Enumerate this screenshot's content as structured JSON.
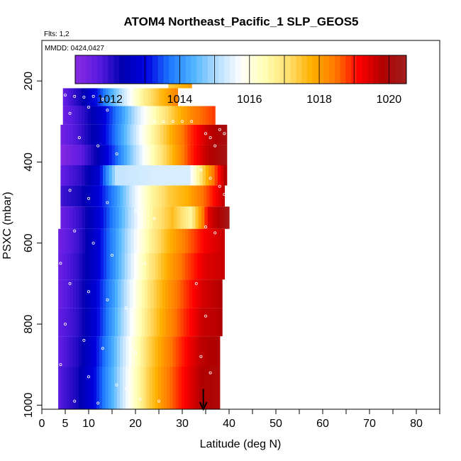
{
  "chart_data": {
    "type": "heatmap",
    "title": "ATOM4 Northeast_Pacific_1 SLP_GEOS5",
    "flights_label": "Flts: 1,2",
    "dates_label": "MMDD: 0424,0427",
    "xlabel": "Latitude (deg N)",
    "ylabel": "PSXC (mbar)",
    "xlim": [
      0,
      85
    ],
    "ylim": [
      1010,
      100
    ],
    "y_reversed": true,
    "x_ticks": [
      0,
      5,
      10,
      20,
      30,
      40,
      50,
      60,
      70,
      80
    ],
    "x_tick_labels": [
      "0",
      "5",
      "10",
      "20",
      "30",
      "40",
      "50",
      "60",
      "70",
      "80"
    ],
    "x_minor_ticks": [
      15,
      25,
      35,
      45,
      55,
      65,
      75,
      85
    ],
    "y_ticks": [
      200,
      400,
      600,
      800,
      1000
    ],
    "y_tick_labels": [
      "200",
      "400",
      "600",
      "800",
      "1000"
    ],
    "colorbar": {
      "min": 1011,
      "max": 1020.5,
      "tick_values": [
        1012,
        1014,
        1016,
        1018,
        1020
      ],
      "tick_labels": [
        "1012",
        "1014",
        "1016",
        "1018",
        "1020"
      ],
      "divider_values": [
        1013,
        1014,
        1015,
        1016,
        1017,
        1018,
        1019,
        1020
      ],
      "colors": [
        "#8a2be2",
        "#5a1ae0",
        "#0000b0",
        "#0000e0",
        "#1e78ff",
        "#50b4ff",
        "#b4deff",
        "#ffffff",
        "#ffffb4",
        "#ffe070",
        "#ffb000",
        "#ff7800",
        "#ff0000",
        "#b00000",
        "#a02020"
      ]
    },
    "layers": [
      {
        "p_top": 218,
        "p_bot": 262,
        "lat_start": 4.5,
        "lat_end": 29,
        "values": [
          1011.6,
          1012.2,
          1013.1,
          1014.4,
          1015.6,
          1016.8,
          1017.6,
          1018.3
        ]
      },
      {
        "p_top": 170,
        "p_bot": 218,
        "lat_start": 27,
        "lat_end": 32,
        "values": [
          1017.4,
          1018.0
        ]
      },
      {
        "p_top": 262,
        "p_bot": 308,
        "lat_start": 4.5,
        "lat_end": 37,
        "values": [
          1011.5,
          1012.0,
          1012.8,
          1014.0,
          1015.4,
          1016.6,
          1017.6,
          1018.4,
          1018.8
        ]
      },
      {
        "p_top": 308,
        "p_bot": 358,
        "lat_start": 4,
        "lat_end": 39.5,
        "values": [
          1011.4,
          1011.9,
          1012.6,
          1013.8,
          1015.2,
          1016.6,
          1017.8,
          1018.8,
          1019.6,
          1020.1
        ]
      },
      {
        "p_top": 358,
        "p_bot": 408,
        "lat_start": 4,
        "lat_end": 39.5,
        "values": [
          1011.1,
          1011.6,
          1012.4,
          1013.6,
          1015.0,
          1016.4,
          1017.6,
          1018.8,
          1019.7,
          1020.2
        ]
      },
      {
        "p_top": 408,
        "p_bot": 458,
        "lat_start": 4,
        "lat_end": 39.5,
        "values": [
          1011.6,
          1012.0,
          1012.8,
          1015.2,
          1015.3,
          1015.4,
          1015.4,
          1015.4,
          1017.8,
          1019.8
        ]
      },
      {
        "p_top": 458,
        "p_bot": 510,
        "lat_start": 4,
        "lat_end": 39,
        "values": [
          1011.9,
          1012.2,
          1012.9,
          1014.0,
          1015.4,
          1016.6,
          1017.4,
          1017.8,
          1018.6,
          1019.6
        ]
      },
      {
        "p_top": 510,
        "p_bot": 565,
        "lat_start": 4,
        "lat_end": 40,
        "values": [
          1011.5,
          1012.0,
          1012.9,
          1014.1,
          1015.5,
          1016.8,
          1017.6,
          1016.6,
          1019.4,
          1020.3
        ]
      },
      {
        "p_top": 565,
        "p_bot": 625,
        "lat_start": 3.5,
        "lat_end": 39,
        "values": [
          1011.4,
          1011.9,
          1012.8,
          1014.0,
          1015.4,
          1016.7,
          1017.7,
          1018.5,
          1019.2,
          1019.6
        ]
      },
      {
        "p_top": 625,
        "p_bot": 690,
        "lat_start": 3.5,
        "lat_end": 39,
        "values": [
          1011.5,
          1012.0,
          1012.8,
          1014.0,
          1015.5,
          1016.9,
          1017.9,
          1018.7,
          1019.4,
          1019.6
        ]
      },
      {
        "p_top": 690,
        "p_bot": 760,
        "lat_start": 3.5,
        "lat_end": 38.5,
        "values": [
          1011.5,
          1012.0,
          1012.9,
          1014.1,
          1015.6,
          1017.0,
          1018.0,
          1018.8,
          1019.5,
          1019.8
        ]
      },
      {
        "p_top": 760,
        "p_bot": 830,
        "lat_start": 3.5,
        "lat_end": 38.5,
        "values": [
          1011.6,
          1012.0,
          1012.9,
          1014.2,
          1015.7,
          1017.1,
          1018.1,
          1018.9,
          1019.6,
          1019.8
        ]
      },
      {
        "p_top": 830,
        "p_bot": 905,
        "lat_start": 3.5,
        "lat_end": 38,
        "values": [
          1011.6,
          1012.1,
          1013.0,
          1014.3,
          1015.8,
          1017.2,
          1018.2,
          1019.0,
          1019.7,
          1019.9
        ]
      },
      {
        "p_top": 905,
        "p_bot": 1010,
        "lat_start": 3.5,
        "lat_end": 38,
        "values": [
          1011.7,
          1012.2,
          1013.1,
          1014.4,
          1015.9,
          1017.3,
          1018.3,
          1019.1,
          1019.8,
          1020.0
        ]
      }
    ],
    "observation_points": [
      {
        "lat": 5,
        "p": 235
      },
      {
        "lat": 7,
        "p": 238
      },
      {
        "lat": 9,
        "p": 240
      },
      {
        "lat": 11,
        "p": 238
      },
      {
        "lat": 13,
        "p": 245
      },
      {
        "lat": 15,
        "p": 250
      },
      {
        "lat": 17,
        "p": 240
      },
      {
        "lat": 19,
        "p": 258
      },
      {
        "lat": 28,
        "p": 200
      },
      {
        "lat": 29,
        "p": 200
      },
      {
        "lat": 30,
        "p": 200
      },
      {
        "lat": 31,
        "p": 200
      },
      {
        "lat": 32,
        "p": 200
      },
      {
        "lat": 6,
        "p": 280
      },
      {
        "lat": 10,
        "p": 265
      },
      {
        "lat": 14,
        "p": 272
      },
      {
        "lat": 22,
        "p": 285
      },
      {
        "lat": 24,
        "p": 300
      },
      {
        "lat": 26,
        "p": 300
      },
      {
        "lat": 28,
        "p": 300
      },
      {
        "lat": 30,
        "p": 300
      },
      {
        "lat": 32,
        "p": 300
      },
      {
        "lat": 35,
        "p": 330
      },
      {
        "lat": 36,
        "p": 340
      },
      {
        "lat": 37,
        "p": 360
      },
      {
        "lat": 38,
        "p": 320
      },
      {
        "lat": 39,
        "p": 330
      },
      {
        "lat": 8,
        "p": 340
      },
      {
        "lat": 12,
        "p": 360
      },
      {
        "lat": 16,
        "p": 380
      },
      {
        "lat": 34,
        "p": 420
      },
      {
        "lat": 36,
        "p": 440
      },
      {
        "lat": 38,
        "p": 460
      },
      {
        "lat": 39,
        "p": 480
      },
      {
        "lat": 6,
        "p": 470
      },
      {
        "lat": 10,
        "p": 490
      },
      {
        "lat": 14,
        "p": 500
      },
      {
        "lat": 20,
        "p": 520
      },
      {
        "lat": 24,
        "p": 540
      },
      {
        "lat": 35,
        "p": 560
      },
      {
        "lat": 37,
        "p": 575
      },
      {
        "lat": 7,
        "p": 570
      },
      {
        "lat": 11,
        "p": 600
      },
      {
        "lat": 15,
        "p": 630
      },
      {
        "lat": 22,
        "p": 650
      },
      {
        "lat": 4,
        "p": 650
      },
      {
        "lat": 6,
        "p": 700
      },
      {
        "lat": 10,
        "p": 720
      },
      {
        "lat": 14,
        "p": 740
      },
      {
        "lat": 18,
        "p": 760
      },
      {
        "lat": 33,
        "p": 700
      },
      {
        "lat": 35,
        "p": 780
      },
      {
        "lat": 5,
        "p": 800
      },
      {
        "lat": 9,
        "p": 840
      },
      {
        "lat": 13,
        "p": 860
      },
      {
        "lat": 20,
        "p": 870
      },
      {
        "lat": 4,
        "p": 900
      },
      {
        "lat": 10,
        "p": 930
      },
      {
        "lat": 16,
        "p": 950
      },
      {
        "lat": 18,
        "p": 960
      },
      {
        "lat": 34,
        "p": 880
      },
      {
        "lat": 36,
        "p": 920
      },
      {
        "lat": 7,
        "p": 990
      },
      {
        "lat": 12,
        "p": 995
      },
      {
        "lat": 21,
        "p": 985
      },
      {
        "lat": 25,
        "p": 990
      }
    ],
    "arrow_marker": {
      "lat": 34.5,
      "p_from": 960,
      "p_to": 1010
    }
  }
}
